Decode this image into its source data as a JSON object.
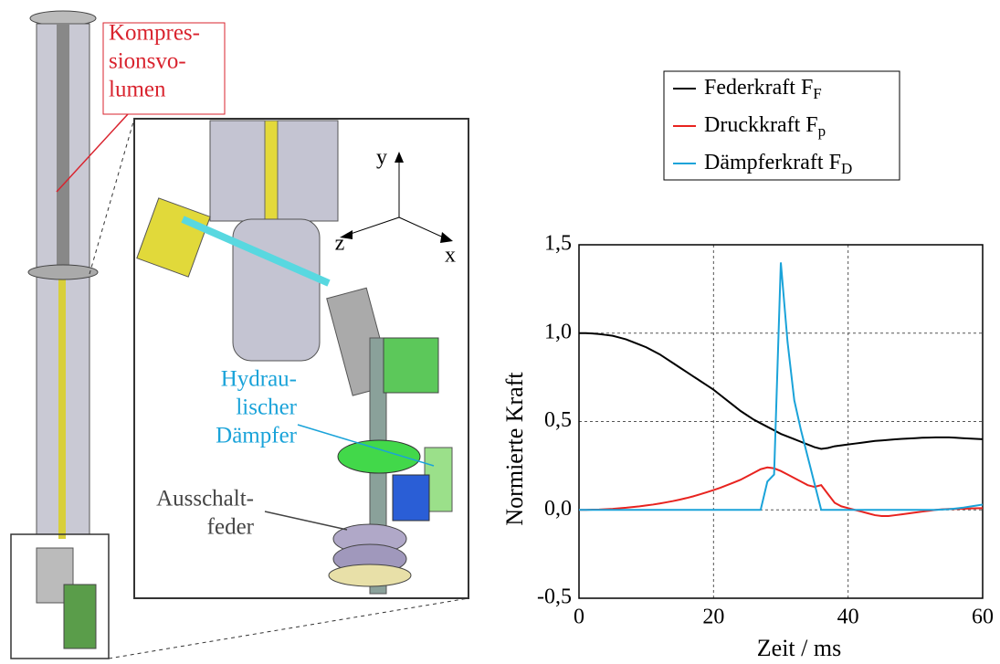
{
  "chart_data": {
    "type": "line",
    "xlabel": "Zeit / ms",
    "ylabel": "Normierte Kraft",
    "xlim": [
      0,
      60
    ],
    "ylim": [
      -0.5,
      1.5
    ],
    "xticks": [
      0,
      20,
      40,
      60
    ],
    "yticks": [
      {
        "value": -0.5,
        "label": "-0,5"
      },
      {
        "value": 0,
        "label": "0,0"
      },
      {
        "value": 0.5,
        "label": "0,5"
      },
      {
        "value": 1,
        "label": "1,0"
      },
      {
        "value": 1.5,
        "label": "1,5"
      }
    ],
    "grid": true,
    "legend": "top",
    "x": [
      0,
      1,
      2,
      3,
      4,
      5,
      6,
      7,
      8,
      9,
      10,
      11,
      12,
      13,
      14,
      15,
      16,
      17,
      18,
      19,
      20,
      21,
      22,
      23,
      24,
      25,
      26,
      27,
      28,
      29,
      30,
      31,
      32,
      33,
      34,
      35,
      36,
      37,
      38,
      39,
      40,
      41,
      42,
      43,
      44,
      45,
      46,
      47,
      48,
      49,
      50,
      51,
      52,
      53,
      54,
      55,
      56,
      57,
      58,
      59,
      60
    ],
    "series": [
      {
        "name": "Federkraft F",
        "name_sub": "F",
        "color": "#000000",
        "values": [
          1.0,
          1.0,
          0.998,
          0.995,
          0.99,
          0.985,
          0.975,
          0.965,
          0.95,
          0.935,
          0.92,
          0.9,
          0.88,
          0.855,
          0.83,
          0.805,
          0.78,
          0.755,
          0.73,
          0.705,
          0.68,
          0.65,
          0.62,
          0.59,
          0.56,
          0.535,
          0.51,
          0.49,
          0.47,
          0.45,
          0.43,
          0.415,
          0.4,
          0.385,
          0.37,
          0.355,
          0.345,
          0.35,
          0.36,
          0.365,
          0.37,
          0.375,
          0.38,
          0.385,
          0.39,
          0.393,
          0.396,
          0.399,
          0.402,
          0.404,
          0.406,
          0.408,
          0.409,
          0.41,
          0.41,
          0.41,
          0.408,
          0.406,
          0.404,
          0.402,
          0.4
        ]
      },
      {
        "name": "Druckkraft F",
        "name_sub": "p",
        "color": "#e8231f",
        "values": [
          0,
          0,
          0.001,
          0.002,
          0.004,
          0.006,
          0.009,
          0.012,
          0.016,
          0.02,
          0.025,
          0.03,
          0.036,
          0.043,
          0.05,
          0.058,
          0.067,
          0.077,
          0.088,
          0.1,
          0.112,
          0.125,
          0.14,
          0.155,
          0.17,
          0.19,
          0.21,
          0.23,
          0.24,
          0.235,
          0.22,
          0.2,
          0.18,
          0.16,
          0.14,
          0.13,
          0.14,
          0.09,
          0.04,
          0.02,
          0.01,
          0,
          -0.01,
          -0.02,
          -0.03,
          -0.035,
          -0.035,
          -0.03,
          -0.025,
          -0.02,
          -0.015,
          -0.01,
          -0.005,
          0,
          0.003,
          0.005,
          0.005,
          0.006,
          0.008,
          0.009,
          0.01
        ]
      },
      {
        "name": "Dämpferkraft F",
        "name_sub": "D",
        "color": "#1aa3d9",
        "values": [
          0,
          0,
          0,
          0,
          0,
          0,
          0,
          0,
          0,
          0,
          0,
          0,
          0,
          0,
          0,
          0,
          0,
          0,
          0,
          0,
          0,
          0,
          0,
          0,
          0,
          0,
          0,
          0,
          0.16,
          0.2,
          1.4,
          0.95,
          0.62,
          0.45,
          0.3,
          0.15,
          0,
          0,
          0,
          0,
          0,
          0,
          0,
          0,
          0,
          0,
          0,
          0,
          0,
          0,
          0,
          0,
          0,
          0,
          0.002,
          0.004,
          0.008,
          0.012,
          0.018,
          0.024,
          0.03
        ]
      }
    ]
  },
  "illustration": {
    "labels": [
      {
        "lines": [
          "Kompres-",
          "sionsvo-",
          "lumen"
        ],
        "color": "#d9232e"
      },
      {
        "lines": [
          "Hydrau-",
          "lischer",
          "Dämpfer"
        ],
        "color": "#1aa3d9"
      },
      {
        "lines": [
          "Ausschalt-",
          "feder"
        ],
        "color": "#444444"
      }
    ],
    "axes": [
      "y",
      "z",
      "x"
    ]
  }
}
